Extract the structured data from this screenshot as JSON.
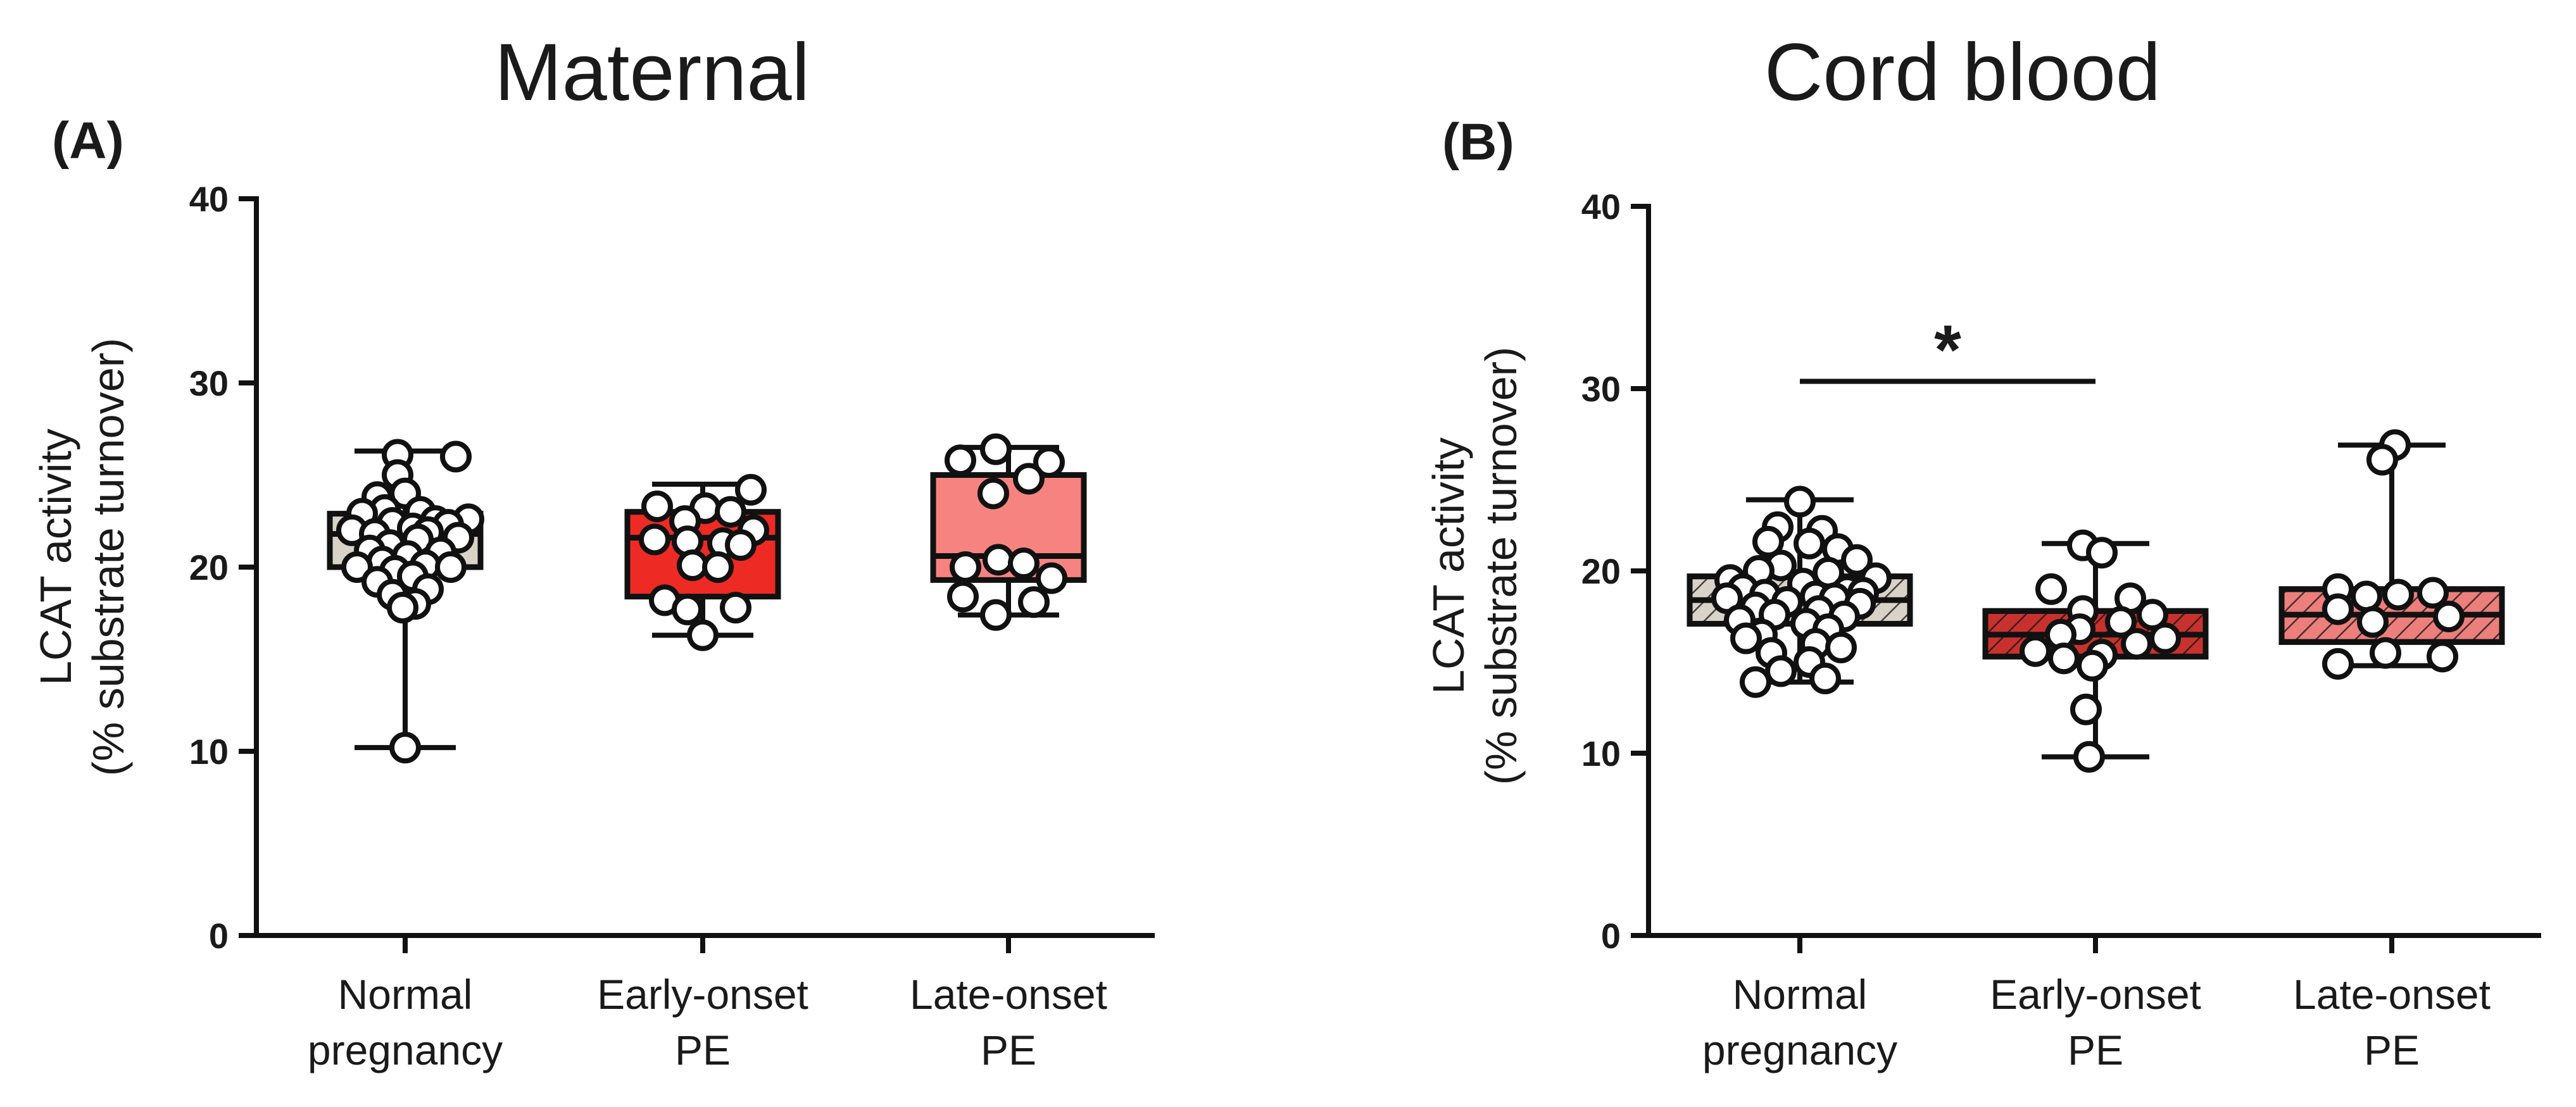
{
  "chart_data": [
    {
      "type": "box",
      "title": "Maternal",
      "panel_label": "(A)",
      "ylabel_line1": "LCAT activity",
      "ylabel_line2": "(% substrate turnover)",
      "ylim": [
        0,
        40
      ],
      "yticks": [
        0,
        10,
        20,
        30,
        40
      ],
      "categories": [
        {
          "line1": "Normal",
          "line2": "pregnancy"
        },
        {
          "line1": "Early-onset",
          "line2": "PE"
        },
        {
          "line1": "Late-onset",
          "line2": "PE"
        }
      ],
      "groups": [
        {
          "name": "Normal pregnancy",
          "fill": "#d9d3c7",
          "hatched": false,
          "min": 10.2,
          "q1": 20.0,
          "median": 21.8,
          "q3": 22.9,
          "max": 26.3,
          "points": [
            26.1,
            26.0,
            25.0,
            24.0,
            23.8,
            23.1,
            23.0,
            22.9,
            22.6,
            22.5,
            22.4,
            22.3,
            22.1,
            22.0,
            21.9,
            21.8,
            21.6,
            21.5,
            21.2,
            20.9,
            20.8,
            20.6,
            20.3,
            20.1,
            20.0,
            20.0,
            19.8,
            19.5,
            19.2,
            18.8,
            18.5,
            18.0,
            17.8,
            10.2
          ],
          "jitter": [
            -0.15,
            1.0,
            -0.15,
            0.0,
            -0.55,
            -0.4,
            0.3,
            -0.85,
            1.25,
            0.6,
            -0.25,
            0.85,
            0.15,
            -1.05,
            0.45,
            -0.6,
            1.05,
            0.25,
            -0.3,
            -0.7,
            0.7,
            0.05,
            -0.45,
            0.4,
            -0.95,
            0.9,
            -0.2,
            0.15,
            -0.55,
            0.45,
            -0.25,
            0.2,
            -0.05,
            0.0
          ]
        },
        {
          "name": "Early-onset PE",
          "fill": "#ee2a24",
          "hatched": false,
          "min": 16.3,
          "q1": 18.4,
          "median": 21.6,
          "q3": 23.0,
          "max": 24.5,
          "points": [
            24.2,
            23.3,
            23.2,
            23.0,
            22.5,
            22.0,
            21.5,
            21.4,
            21.3,
            21.2,
            20.1,
            20.0,
            18.2,
            17.8,
            17.7,
            16.3
          ],
          "jitter": [
            0.95,
            -0.9,
            0.05,
            0.55,
            -0.35,
            1.0,
            -0.95,
            -0.3,
            0.4,
            0.75,
            -0.2,
            0.3,
            -0.75,
            0.65,
            -0.3,
            0.0
          ]
        },
        {
          "name": "Late-onset PE",
          "fill": "#f78380",
          "hatched": false,
          "min": 17.4,
          "q1": 19.3,
          "median": 20.6,
          "q3": 25.0,
          "max": 26.5,
          "points": [
            26.4,
            25.8,
            25.7,
            24.8,
            24.0,
            20.4,
            20.2,
            20.0,
            19.4,
            18.4,
            18.1,
            17.4
          ],
          "jitter": [
            -0.25,
            -0.95,
            0.8,
            0.4,
            -0.3,
            -0.2,
            0.3,
            -0.85,
            0.85,
            -0.9,
            0.5,
            -0.25
          ]
        }
      ]
    },
    {
      "type": "box",
      "title": "Cord blood",
      "panel_label": "(B)",
      "ylabel_line1": "LCAT activity",
      "ylabel_line2": "(% substrate turnover)",
      "ylim": [
        0,
        40
      ],
      "yticks": [
        0,
        10,
        20,
        30,
        40
      ],
      "significance": {
        "from": 0,
        "to": 1,
        "label": "*",
        "y": 30.4
      },
      "categories": [
        {
          "line1": "Normal",
          "line2": "pregnancy"
        },
        {
          "line1": "Early-onset",
          "line2": "PE"
        },
        {
          "line1": "Late-onset",
          "line2": "PE"
        }
      ],
      "groups": [
        {
          "name": "Normal pregnancy",
          "fill": "#d9d3c7",
          "hatched": true,
          "min": 13.9,
          "q1": 17.1,
          "median": 18.4,
          "q3": 19.7,
          "max": 23.9,
          "points": [
            23.8,
            22.4,
            22.2,
            21.6,
            21.5,
            21.2,
            20.6,
            20.3,
            20.0,
            19.9,
            19.6,
            19.5,
            19.3,
            19.0,
            18.9,
            18.8,
            18.7,
            18.6,
            18.5,
            18.5,
            18.3,
            18.2,
            18.0,
            17.8,
            17.6,
            17.5,
            17.3,
            17.1,
            16.8,
            16.5,
            16.3,
            16.0,
            15.8,
            15.5,
            15.0,
            14.5,
            14.1,
            13.9
          ],
          "jitter": [
            0.0,
            -0.35,
            0.35,
            -0.5,
            0.15,
            0.6,
            0.9,
            -0.3,
            -0.65,
            0.45,
            1.2,
            -1.1,
            0.05,
            -0.9,
            0.75,
            1.0,
            -0.55,
            0.25,
            -1.15,
            0.55,
            -0.2,
            0.95,
            -0.7,
            0.3,
            -0.4,
            0.7,
            -0.95,
            0.1,
            0.45,
            -0.6,
            -0.85,
            0.25,
            0.65,
            -0.45,
            0.15,
            -0.3,
            0.4,
            -0.7
          ]
        },
        {
          "name": "Early-onset PE",
          "fill": "#c8322e",
          "hatched": true,
          "min": 9.8,
          "q1": 15.3,
          "median": 16.5,
          "q3": 17.8,
          "max": 21.5,
          "points": [
            21.4,
            21.0,
            19.0,
            18.5,
            17.8,
            17.6,
            17.2,
            16.8,
            16.5,
            16.3,
            16.0,
            15.6,
            15.4,
            15.2,
            14.8,
            12.4,
            9.8
          ],
          "jitter": [
            -0.2,
            0.1,
            -0.7,
            0.55,
            -0.2,
            0.9,
            0.4,
            -0.25,
            -0.55,
            1.1,
            0.65,
            -0.95,
            0.1,
            -0.5,
            -0.05,
            -0.15,
            -0.1
          ]
        },
        {
          "name": "Late-onset PE",
          "fill": "#ec7f7c",
          "hatched": true,
          "min": 14.8,
          "q1": 16.1,
          "median": 17.6,
          "q3": 19.0,
          "max": 26.9,
          "points": [
            26.9,
            26.1,
            19.0,
            18.8,
            18.7,
            18.6,
            17.9,
            17.5,
            17.2,
            15.5,
            15.3,
            14.9
          ],
          "jitter": [
            0.05,
            -0.15,
            -0.85,
            0.65,
            0.1,
            -0.4,
            -0.85,
            0.9,
            -0.3,
            -0.1,
            0.8,
            -0.85
          ]
        }
      ]
    }
  ]
}
